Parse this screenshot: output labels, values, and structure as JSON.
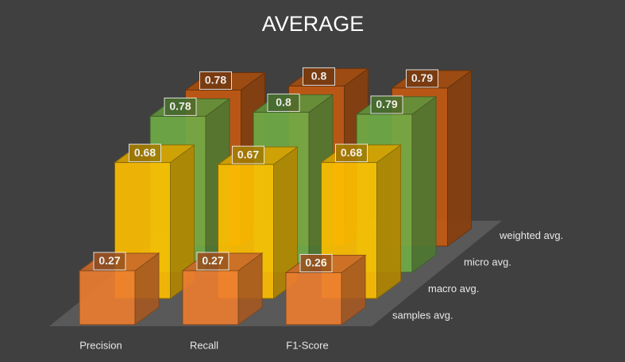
{
  "chart_data": {
    "type": "bar3d",
    "title": "AVERAGE",
    "categories": [
      "Precision",
      "Recall",
      "F1-Score"
    ],
    "series": [
      {
        "name": "samples avg.",
        "color": "#ed7d31",
        "values": [
          0.27,
          0.27,
          0.26
        ]
      },
      {
        "name": "macro avg.",
        "color": "#ffc000",
        "values": [
          0.68,
          0.67,
          0.68
        ]
      },
      {
        "name": "micro avg.",
        "color": "#70ad47",
        "values": [
          0.78,
          0.8,
          0.79
        ]
      },
      {
        "name": "weighted avg.",
        "color": "#c55a11",
        "values": [
          0.78,
          0.8,
          0.79
        ]
      }
    ]
  }
}
